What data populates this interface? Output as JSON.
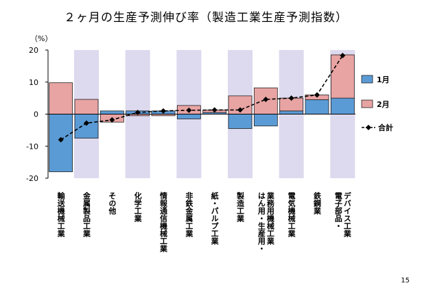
{
  "title": "２ヶ月の生産予測伸び率（製造工業生産予測指数）",
  "page_number": "15",
  "chart_data": {
    "type": "bar",
    "stacked": true,
    "unit_label": "（%）",
    "categories": [
      [
        "輸送機械工業"
      ],
      [
        "金属製品工業"
      ],
      [
        "その他"
      ],
      [
        "化学工業"
      ],
      [
        "情報通信機械工業"
      ],
      [
        "非鉄金属工業"
      ],
      [
        "紙・パルプ工業"
      ],
      [
        "製造工業"
      ],
      [
        "はん用・生産用・",
        "業務用機械工業"
      ],
      [
        "電気機械工業"
      ],
      [
        "鉄鋼業"
      ],
      [
        "電子部品・",
        "デバイス工業"
      ]
    ],
    "series": [
      {
        "name": "1月",
        "type": "bar",
        "color": "#5b9bd5",
        "values": [
          -18,
          -7.5,
          1,
          1,
          1,
          -1.5,
          0.5,
          -4.5,
          -3.7,
          1,
          4.5,
          5
        ]
      },
      {
        "name": "2月",
        "type": "bar",
        "color": "#e8a3a3",
        "values": [
          9.8,
          4.6,
          -2.5,
          -0.5,
          -0.5,
          2.7,
          0.8,
          5.7,
          8.2,
          4,
          1.5,
          13.5
        ]
      },
      {
        "name": "合計",
        "type": "line",
        "color": "#000000",
        "values": [
          -8,
          -2.8,
          -1.8,
          0.5,
          1,
          1.2,
          1.3,
          1.3,
          4.6,
          5,
          6,
          18.3
        ]
      }
    ],
    "ylim": [
      -20,
      20
    ],
    "yticks": [
      -20,
      -10,
      0,
      10,
      20
    ],
    "shaded_columns": [
      1,
      3,
      5,
      7,
      9,
      11
    ],
    "shade_color": "#ddd9ee",
    "legend": "right"
  }
}
